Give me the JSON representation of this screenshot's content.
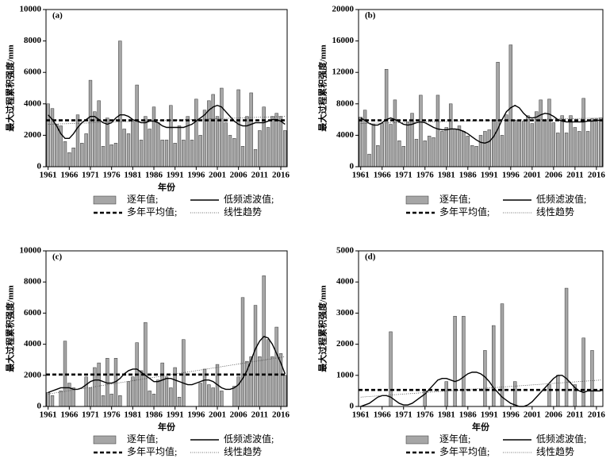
{
  "chart_data": [
    {
      "type": "bar",
      "panel": "(a)",
      "ylabel": "最大过程累积强度/mm",
      "xlabel": "年份",
      "x": [
        1961,
        1962,
        1963,
        1964,
        1965,
        1966,
        1967,
        1968,
        1969,
        1970,
        1971,
        1972,
        1973,
        1974,
        1975,
        1976,
        1977,
        1978,
        1979,
        1980,
        1981,
        1982,
        1983,
        1984,
        1985,
        1986,
        1987,
        1988,
        1989,
        1990,
        1991,
        1992,
        1993,
        1994,
        1995,
        1996,
        1997,
        1998,
        1999,
        2000,
        2001,
        2002,
        2003,
        2004,
        2005,
        2006,
        2007,
        2008,
        2009,
        2010,
        2011,
        2012,
        2013,
        2014,
        2015,
        2016,
        2017
      ],
      "xlim": [
        1960.5,
        2017.5
      ],
      "xticks": [
        1961,
        1966,
        1971,
        1976,
        1981,
        1986,
        1991,
        1996,
        2001,
        2006,
        2011,
        2016
      ],
      "ylim": [
        0,
        10000
      ],
      "yticks": [
        0,
        2000,
        4000,
        6000,
        8000,
        10000
      ],
      "series": [
        {
          "name": "逐年值;",
          "color": "#a6a6a6",
          "values": [
            4000,
            3700,
            2700,
            2600,
            1600,
            900,
            1200,
            3300,
            1500,
            2100,
            5500,
            3500,
            4200,
            1300,
            3100,
            1400,
            1500,
            8000,
            2400,
            2100,
            2900,
            5200,
            1700,
            3200,
            2400,
            3800,
            2800,
            1700,
            1700,
            3900,
            1500,
            2600,
            1700,
            3200,
            1700,
            4300,
            2000,
            3600,
            4200,
            4600,
            3200,
            5000,
            2800,
            2000,
            1800,
            4900,
            1300,
            3200,
            4700,
            1100,
            2300,
            3800,
            2500,
            3200,
            3400,
            3200,
            2300
          ]
        },
        {
          "name": "低频滤波值;",
          "color": "#000000",
          "values": [
            3300,
            3000,
            2600,
            2100,
            1800,
            1800,
            2100,
            2500,
            2800,
            3000,
            3200,
            3200,
            3000,
            2800,
            2700,
            2800,
            3100,
            3300,
            3300,
            3200,
            3000,
            2900,
            2800,
            2800,
            2900,
            2900,
            2800,
            2600,
            2500,
            2500,
            2500,
            2500,
            2500,
            2600,
            2700,
            2900,
            3100,
            3300,
            3600,
            3800,
            3900,
            3800,
            3500,
            3200,
            2900,
            2700,
            2600,
            2600,
            2700,
            2800,
            2800,
            2800,
            2900,
            3000,
            3000,
            2900,
            2700
          ]
        },
        {
          "name": "多年平均值;",
          "color": "#000000",
          "value": 2950
        },
        {
          "name": "线性趋势",
          "color": "#444444",
          "x": [
            1961,
            2017
          ],
          "values": [
            2700,
            3200
          ]
        }
      ]
    },
    {
      "type": "bar",
      "panel": "(b)",
      "ylabel": "最大过程累积强度/mm",
      "x": [
        1961,
        1962,
        1963,
        1964,
        1965,
        1966,
        1967,
        1968,
        1969,
        1970,
        1971,
        1972,
        1973,
        1974,
        1975,
        1976,
        1977,
        1978,
        1979,
        1980,
        1981,
        1982,
        1983,
        1984,
        1985,
        1986,
        1987,
        1988,
        1989,
        1990,
        1991,
        1992,
        1993,
        1994,
        1995,
        1996,
        1997,
        1998,
        1999,
        2000,
        2001,
        2002,
        2003,
        2004,
        2005,
        2006,
        2007,
        2008,
        2009,
        2010,
        2011,
        2012,
        2013,
        2014,
        2015,
        2016,
        2017
      ],
      "xlim": [
        1960.5,
        2017.5
      ],
      "xticks": [
        1961,
        1966,
        1971,
        1976,
        1981,
        1986,
        1991,
        1996,
        2001,
        2006,
        2011,
        2016
      ],
      "ylim": [
        0,
        20000
      ],
      "yticks": [
        0,
        4000,
        8000,
        12000,
        16000,
        20000
      ],
      "series": [
        {
          "name": "逐年值;",
          "color": "#a6a6a6",
          "values": [
            6300,
            7200,
            1600,
            5400,
            2700,
            5500,
            12400,
            5400,
            8500,
            3300,
            2600,
            5700,
            6800,
            3500,
            9100,
            3300,
            3900,
            3700,
            9100,
            4500,
            5000,
            8000,
            4800,
            5200,
            4500,
            3900,
            2700,
            2600,
            4000,
            4500,
            4700,
            5800,
            13300,
            4000,
            6600,
            15500,
            5900,
            5800,
            5800,
            6500,
            5500,
            7000,
            8500,
            5900,
            8600,
            5600,
            4300,
            6500,
            4300,
            6500,
            5000,
            4500,
            8700,
            4500,
            6100,
            6100,
            6200
          ]
        },
        {
          "name": "低频滤波值;",
          "color": "#000000",
          "values": [
            6200,
            5900,
            5500,
            5300,
            5300,
            5600,
            6000,
            6200,
            6000,
            5700,
            5400,
            5300,
            5400,
            5600,
            5700,
            5600,
            5300,
            5000,
            4800,
            4700,
            4700,
            4800,
            4800,
            4700,
            4500,
            4200,
            3800,
            3400,
            3100,
            3000,
            3200,
            3800,
            4800,
            6000,
            7000,
            7500,
            7800,
            7500,
            6800,
            6300,
            6200,
            6300,
            6600,
            6800,
            6700,
            6400,
            6000,
            5800,
            5700,
            5700,
            5700,
            5700,
            5700,
            5800,
            5800,
            5900,
            5900
          ]
        },
        {
          "name": "多年平均值;",
          "color": "#000000",
          "value": 5900
        },
        {
          "name": "线性趋势",
          "color": "#444444",
          "x": [
            1961,
            2017
          ],
          "values": [
            5500,
            6200
          ]
        }
      ]
    },
    {
      "type": "bar",
      "panel": "(c)",
      "ylabel": "最大过程累积强度/mm",
      "xlabel": "年份",
      "x": [
        1961,
        1962,
        1963,
        1964,
        1965,
        1966,
        1967,
        1968,
        1969,
        1970,
        1971,
        1972,
        1973,
        1974,
        1975,
        1976,
        1977,
        1978,
        1979,
        1980,
        1981,
        1982,
        1983,
        1984,
        1985,
        1986,
        1987,
        1988,
        1989,
        1990,
        1991,
        1992,
        1993,
        1994,
        1995,
        1996,
        1997,
        1998,
        1999,
        2000,
        2001,
        2002,
        2003,
        2004,
        2005,
        2006,
        2007,
        2008,
        2009,
        2010,
        2011,
        2012,
        2013,
        2014,
        2015,
        2016,
        2017
      ],
      "xlim": [
        1960.5,
        2017.5
      ],
      "xticks": [
        1961,
        1966,
        1971,
        1976,
        1981,
        1986,
        1991,
        1996,
        2001,
        2006,
        2011,
        2016
      ],
      "ylim": [
        0,
        10000
      ],
      "yticks": [
        0,
        2000,
        4000,
        6000,
        8000,
        10000
      ],
      "series": [
        {
          "name": "逐年值;",
          "color": "#a6a6a6",
          "values": [
            900,
            700,
            0,
            1000,
            4200,
            1500,
            1200,
            0,
            0,
            1900,
            1200,
            2500,
            2800,
            700,
            3100,
            800,
            3100,
            700,
            0,
            1600,
            1900,
            4100,
            2300,
            5400,
            1000,
            800,
            1700,
            2800,
            1900,
            1200,
            2500,
            600,
            4300,
            0,
            0,
            0,
            1500,
            2400,
            1400,
            1200,
            2700,
            1000,
            0,
            0,
            1300,
            1900,
            7000,
            2900,
            3200,
            6500,
            3200,
            8400,
            4300,
            3200,
            5100,
            3400,
            2000
          ]
        },
        {
          "name": "低频滤波值;",
          "color": "#000000",
          "values": [
            900,
            1000,
            1100,
            1200,
            1200,
            1200,
            1100,
            1100,
            1200,
            1400,
            1600,
            1700,
            1700,
            1600,
            1500,
            1500,
            1600,
            1800,
            2100,
            2300,
            2400,
            2400,
            2200,
            2000,
            1800,
            1600,
            1600,
            1700,
            1800,
            1800,
            1700,
            1600,
            1500,
            1400,
            1400,
            1500,
            1600,
            1700,
            1700,
            1600,
            1400,
            1200,
            1100,
            1100,
            1200,
            1400,
            1800,
            2300,
            3000,
            3700,
            4200,
            4500,
            4400,
            4000,
            3400,
            2800,
            2100
          ]
        },
        {
          "name": "多年平均值;",
          "color": "#000000",
          "value": 2050
        },
        {
          "name": "线性趋势",
          "color": "#444444",
          "x": [
            1961,
            2017
          ],
          "values": [
            800,
            3200
          ]
        }
      ]
    },
    {
      "type": "bar",
      "panel": "(d)",
      "ylabel": "最大过程累积强度/mm",
      "xlabel": "年份",
      "x": [
        1961,
        1962,
        1963,
        1964,
        1965,
        1966,
        1967,
        1968,
        1969,
        1970,
        1971,
        1972,
        1973,
        1974,
        1975,
        1976,
        1977,
        1978,
        1979,
        1980,
        1981,
        1982,
        1983,
        1984,
        1985,
        1986,
        1987,
        1988,
        1989,
        1990,
        1991,
        1992,
        1993,
        1994,
        1995,
        1996,
        1997,
        1998,
        1999,
        2000,
        2001,
        2002,
        2003,
        2004,
        2005,
        2006,
        2007,
        2008,
        2009,
        2010,
        2011,
        2012,
        2013,
        2014,
        2015,
        2016,
        2017
      ],
      "xlim": [
        1960.5,
        2017.5
      ],
      "xticks": [
        1961,
        1966,
        1971,
        1976,
        1981,
        1986,
        1991,
        1996,
        2001,
        2006,
        2011,
        2016
      ],
      "ylim": [
        0,
        5000
      ],
      "yticks": [
        0,
        1000,
        2000,
        3000,
        4000,
        5000
      ],
      "series": [
        {
          "name": "逐年值;",
          "color": "#a6a6a6",
          "values": [
            0,
            0,
            0,
            0,
            0,
            0,
            0,
            2400,
            0,
            0,
            0,
            0,
            0,
            0,
            0,
            500,
            0,
            0,
            0,
            0,
            800,
            0,
            2900,
            0,
            2900,
            0,
            0,
            0,
            0,
            1800,
            0,
            2600,
            0,
            3300,
            0,
            0,
            800,
            0,
            0,
            0,
            0,
            0,
            0,
            0,
            700,
            0,
            1000,
            0,
            3800,
            0,
            700,
            0,
            2200,
            0,
            1800,
            0,
            0
          ]
        },
        {
          "name": "低频滤波值;",
          "color": "#000000",
          "values": [
            0,
            50,
            100,
            200,
            300,
            350,
            350,
            300,
            200,
            100,
            50,
            50,
            100,
            200,
            300,
            400,
            550,
            700,
            850,
            900,
            900,
            850,
            800,
            850,
            950,
            1050,
            1100,
            1100,
            1050,
            950,
            800,
            600,
            450,
            300,
            200,
            100,
            50,
            0,
            0,
            50,
            150,
            300,
            450,
            600,
            750,
            900,
            1000,
            1000,
            900,
            750,
            600,
            500,
            450,
            500,
            500,
            500,
            500
          ]
        },
        {
          "name": "多年平均值;",
          "color": "#000000",
          "value": 530
        },
        {
          "name": "线性趋势",
          "color": "#444444",
          "x": [
            1961,
            2017
          ],
          "values": [
            300,
            850
          ]
        }
      ]
    }
  ]
}
